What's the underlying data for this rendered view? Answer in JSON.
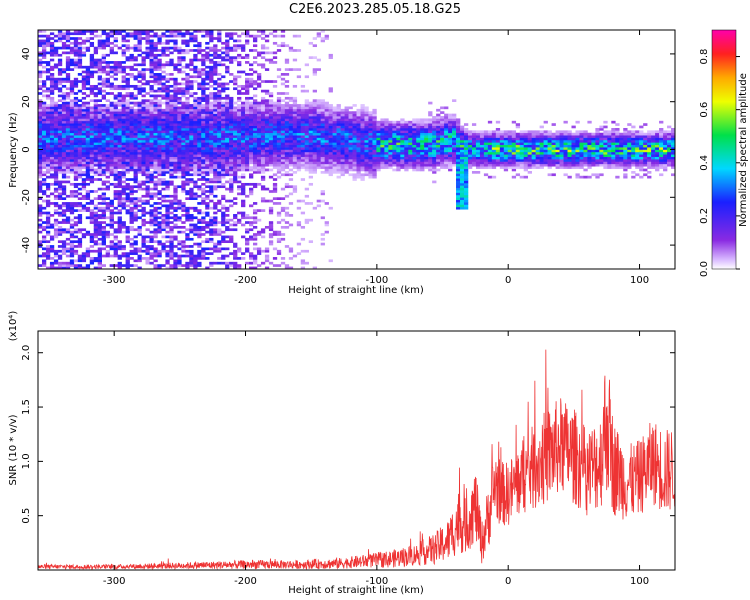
{
  "figure_title": "C2E6.2023.285.05.18.G25",
  "colors": {
    "snr_line": "#ee3333",
    "axis": "#000000"
  },
  "chart_data": [
    {
      "type": "heatmap",
      "title": "",
      "xlabel": "Height of straight line (km)",
      "ylabel": "Frequency (Hz)",
      "xlim": [
        -358,
        127
      ],
      "ylim": [
        -50,
        50
      ],
      "xticks": [
        -300,
        -200,
        -100,
        0,
        100
      ],
      "yticks": [
        -40,
        -20,
        0,
        20,
        40
      ],
      "xtick_labels": [
        "-300",
        "-200",
        "-100",
        "0",
        "100"
      ],
      "ytick_labels": [
        "-40",
        "-20",
        "0",
        "20",
        "40"
      ],
      "colorbar": {
        "label": "Normalized spectral amplitude",
        "range": [
          0.0,
          0.9
        ],
        "ticks": [
          0.0,
          0.2,
          0.4,
          0.6,
          0.8
        ],
        "tick_labels": [
          "0.0",
          "0.2",
          "0.4",
          "0.6",
          "0.8"
        ],
        "colormap": "rainbow (white-purple-blue-cyan-green-yellow-orange-red-magenta)"
      },
      "features": {
        "noise_region_x": [
          -358,
          -150
        ],
        "signal_band_center_hz": [
          [
            -220,
            5
          ],
          [
            -150,
            6
          ],
          [
            -100,
            2
          ],
          [
            -60,
            2
          ],
          [
            -40,
            4
          ],
          [
            -30,
            0
          ],
          [
            0,
            0
          ],
          [
            50,
            0
          ],
          [
            127,
            0
          ]
        ],
        "dip_x": -35,
        "dip_min_hz": -25
      }
    },
    {
      "type": "line",
      "title": "",
      "xlabel": "Height of straight line (km)",
      "ylabel": "SNR (10 * v/v)",
      "y_scale_note": "(x10⁴)",
      "xlim": [
        -358,
        127
      ],
      "ylim": [
        0,
        2.2
      ],
      "xticks": [
        -300,
        -200,
        -100,
        0,
        100
      ],
      "yticks": [
        0.5,
        1.0,
        1.5,
        2.0
      ],
      "xtick_labels": [
        "-300",
        "-200",
        "-100",
        "0",
        "100"
      ],
      "ytick_labels": [
        "0.5",
        "1.0",
        "1.5",
        "2.0"
      ],
      "series": [
        {
          "x": [
            -358,
            -300,
            -250,
            -200,
            -160,
            -130,
            -110,
            -90,
            -70,
            -55,
            -45,
            -38,
            -32,
            -25,
            -20,
            -15,
            -10,
            -5,
            0,
            10,
            20,
            30,
            40,
            50,
            60,
            70,
            75,
            80,
            90,
            100,
            110,
            120,
            127
          ],
          "y_mean": [
            0.03,
            0.03,
            0.04,
            0.05,
            0.05,
            0.06,
            0.08,
            0.1,
            0.14,
            0.2,
            0.28,
            0.45,
            0.4,
            0.6,
            0.25,
            0.5,
            0.8,
            0.7,
            0.7,
            0.85,
            0.95,
            1.05,
            1.15,
            1.05,
            0.9,
            1.0,
            1.4,
            0.95,
            0.8,
            0.85,
            1.0,
            0.9,
            0.95
          ],
          "y_spread": [
            0.02,
            0.02,
            0.03,
            0.04,
            0.04,
            0.05,
            0.06,
            0.08,
            0.1,
            0.15,
            0.2,
            0.3,
            0.25,
            0.35,
            0.2,
            0.3,
            0.35,
            0.3,
            0.3,
            0.35,
            0.4,
            0.45,
            0.45,
            0.45,
            0.4,
            0.45,
            0.7,
            0.45,
            0.35,
            0.35,
            0.4,
            0.4,
            0.4
          ]
        }
      ]
    }
  ]
}
